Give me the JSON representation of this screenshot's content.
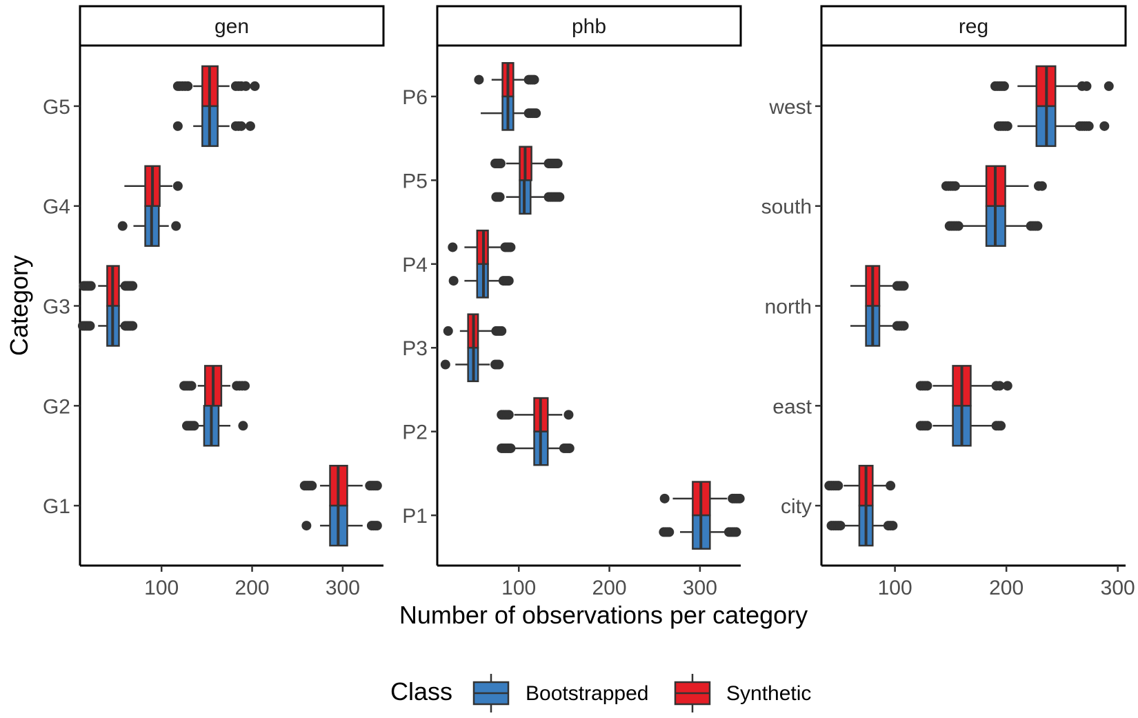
{
  "chart_data": {
    "type": "boxplot",
    "layout": "faceted-horizontal",
    "xlabel": "Number of observations per category",
    "ylabel": "Category",
    "legend": {
      "title": "Class",
      "position": "bottom",
      "entries": [
        {
          "name": "Bootstrapped",
          "color": "#3A7DBF"
        },
        {
          "name": "Synthetic",
          "color": "#E41E26"
        }
      ]
    },
    "facets": [
      {
        "name": "gen",
        "xlim": [
          10,
          345
        ],
        "xticks": [
          100,
          200,
          300
        ],
        "categories": [
          {
            "label": "G1",
            "Synthetic": {
              "min": 275,
              "q1": 286,
              "median": 295,
              "q3": 305,
              "max": 322,
              "outliers": [
                258,
                260,
                262,
                264,
                266,
                330,
                332,
                334,
                336,
                338
              ]
            },
            "Bootstrapped": {
              "min": 275,
              "q1": 286,
              "median": 295,
              "q3": 305,
              "max": 322,
              "outliers": [
                260,
                332,
                334,
                336,
                338
              ]
            }
          },
          {
            "label": "G2",
            "Synthetic": {
              "min": 140,
              "q1": 148,
              "median": 157,
              "q3": 166,
              "max": 176,
              "outliers": [
                125,
                127,
                129,
                131,
                133,
                183,
                186,
                189,
                192
              ]
            },
            "Bootstrapped": {
              "min": 140,
              "q1": 147,
              "median": 155,
              "q3": 163,
              "max": 176,
              "outliers": [
                128,
                130,
                132,
                134,
                136,
                190
              ]
            }
          },
          {
            "label": "G3",
            "Synthetic": {
              "min": 30,
              "q1": 40,
              "median": 46,
              "q3": 53,
              "max": 58,
              "outliers": [
                14,
                16,
                18,
                20,
                22,
                60,
                62,
                64,
                66,
                68
              ]
            },
            "Bootstrapped": {
              "min": 30,
              "q1": 40,
              "median": 46,
              "q3": 53,
              "max": 58,
              "outliers": [
                13,
                15,
                17,
                19,
                21,
                60,
                62,
                64,
                66,
                68
              ]
            }
          },
          {
            "label": "G4",
            "Synthetic": {
              "min": 59,
              "q1": 82,
              "median": 90,
              "q3": 98,
              "max": 112,
              "outliers": [
                118
              ]
            },
            "Bootstrapped": {
              "min": 69,
              "q1": 82,
              "median": 89,
              "q3": 97,
              "max": 108,
              "outliers": [
                57,
                116
              ]
            }
          },
          {
            "label": "G5",
            "Synthetic": {
              "min": 135,
              "q1": 145,
              "median": 153,
              "q3": 162,
              "max": 175,
              "outliers": [
                118,
                120,
                123,
                126,
                129,
                182,
                185,
                188,
                193,
                203
              ]
            },
            "Bootstrapped": {
              "min": 135,
              "q1": 145,
              "median": 153,
              "q3": 162,
              "max": 175,
              "outliers": [
                118,
                182,
                185,
                188,
                198
              ]
            }
          }
        ]
      },
      {
        "name": "phb",
        "xlim": [
          10,
          345
        ],
        "xticks": [
          100,
          200,
          300
        ],
        "categories": [
          {
            "label": "P1",
            "Synthetic": {
              "min": 270,
              "q1": 292,
              "median": 301,
              "q3": 311,
              "max": 330,
              "outliers": [
                261,
                336,
                338,
                340,
                342,
                344
              ]
            },
            "Bootstrapped": {
              "min": 278,
              "q1": 292,
              "median": 301,
              "q3": 311,
              "max": 330,
              "outliers": [
                260,
                262,
                264,
                266,
                332,
                334,
                336,
                338,
                340
              ]
            }
          },
          {
            "label": "P2",
            "Synthetic": {
              "min": 95,
              "q1": 117,
              "median": 124,
              "q3": 132,
              "max": 148,
              "outliers": [
                81,
                83,
                85,
                87,
                89,
                155
              ]
            },
            "Bootstrapped": {
              "min": 95,
              "q1": 117,
              "median": 124,
              "q3": 132,
              "max": 148,
              "outliers": [
                81,
                83,
                85,
                87,
                89,
                91,
                150,
                152,
                154,
                156
              ]
            }
          },
          {
            "label": "P3",
            "Synthetic": {
              "min": 35,
              "q1": 44,
              "median": 50,
              "q3": 55,
              "max": 70,
              "outliers": [
                22,
                75,
                77,
                79,
                81
              ]
            },
            "Bootstrapped": {
              "min": 30,
              "q1": 44,
              "median": 50,
              "q3": 55,
              "max": 68,
              "outliers": [
                19,
                74,
                76,
                78
              ]
            }
          },
          {
            "label": "P4",
            "Synthetic": {
              "min": 40,
              "q1": 54,
              "median": 61,
              "q3": 66,
              "max": 80,
              "outliers": [
                27,
                85,
                87,
                89,
                91
              ]
            },
            "Bootstrapped": {
              "min": 40,
              "q1": 54,
              "median": 61,
              "q3": 66,
              "max": 80,
              "outliers": [
                28,
                83,
                85,
                87,
                89
              ]
            }
          },
          {
            "label": "P5",
            "Synthetic": {
              "min": 86,
              "q1": 101,
              "median": 107,
              "q3": 114,
              "max": 131,
              "outliers": [
                74,
                76,
                78,
                80,
                133,
                135,
                137,
                139,
                141,
                143
              ]
            },
            "Bootstrapped": {
              "min": 86,
              "q1": 101,
              "median": 106,
              "q3": 113,
              "max": 131,
              "outliers": [
                75,
                77,
                79,
                133,
                135,
                137,
                139,
                141,
                143,
                145
              ]
            }
          },
          {
            "label": "P6",
            "Synthetic": {
              "min": 70,
              "q1": 82,
              "median": 88,
              "q3": 94,
              "max": 108,
              "outliers": [
                56,
                111,
                113,
                115,
                117
              ]
            },
            "Bootstrapped": {
              "min": 58,
              "q1": 82,
              "median": 88,
              "q3": 94,
              "max": 110,
              "outliers": [
                111,
                113,
                115,
                117,
                119
              ]
            }
          }
        ]
      },
      {
        "name": "reg",
        "xlim": [
          34,
          307
        ],
        "xticks": [
          100,
          200,
          300
        ],
        "categories": [
          {
            "label": "city",
            "Synthetic": {
              "min": 54,
              "q1": 68,
              "median": 74,
              "q3": 80,
              "max": 92,
              "outliers": [
                41,
                43,
                45,
                47,
                49,
                96
              ]
            },
            "Bootstrapped": {
              "min": 54,
              "q1": 68,
              "median": 74,
              "q3": 80,
              "max": 92,
              "outliers": [
                43,
                45,
                47,
                49,
                51,
                94,
                96,
                98
              ]
            }
          },
          {
            "label": "east",
            "Synthetic": {
              "min": 134,
              "q1": 152,
              "median": 160,
              "q3": 168,
              "max": 188,
              "outliers": [
                123,
                125,
                127,
                129,
                191,
                194,
                201
              ]
            },
            "Bootstrapped": {
              "min": 134,
              "q1": 152,
              "median": 160,
              "q3": 168,
              "max": 188,
              "outliers": [
                123,
                125,
                127,
                129,
                191,
                193,
                195
              ]
            }
          },
          {
            "label": "north",
            "Synthetic": {
              "min": 60,
              "q1": 74,
              "median": 80,
              "q3": 86,
              "max": 100,
              "outliers": [
                102,
                104,
                106,
                108
              ]
            },
            "Bootstrapped": {
              "min": 60,
              "q1": 74,
              "median": 80,
              "q3": 86,
              "max": 100,
              "outliers": [
                102,
                104,
                106,
                108
              ]
            }
          },
          {
            "label": "south",
            "Synthetic": {
              "min": 155,
              "q1": 182,
              "median": 190,
              "q3": 199,
              "max": 220,
              "outliers": [
                146,
                148,
                150,
                152,
                154,
                229,
                232
              ]
            },
            "Bootstrapped": {
              "min": 160,
              "q1": 182,
              "median": 190,
              "q3": 199,
              "max": 220,
              "outliers": [
                149,
                151,
                153,
                155,
                157,
                222,
                224,
                226,
                228
              ]
            }
          },
          {
            "label": "west",
            "Synthetic": {
              "min": 210,
              "q1": 227,
              "median": 236,
              "q3": 244,
              "max": 265,
              "outliers": [
                190,
                192,
                194,
                196,
                198,
                268,
                272,
                292
              ]
            },
            "Bootstrapped": {
              "min": 210,
              "q1": 227,
              "median": 236,
              "q3": 244,
              "max": 265,
              "outliers": [
                193,
                195,
                197,
                199,
                201,
                266,
                268,
                270,
                272,
                274,
                288
              ]
            }
          }
        ]
      }
    ]
  }
}
